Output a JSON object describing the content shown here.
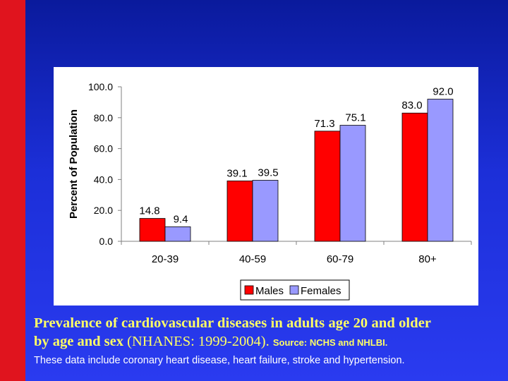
{
  "chart_data": {
    "type": "bar",
    "categories": [
      "20-39",
      "40-59",
      "60-79",
      "80+"
    ],
    "series": [
      {
        "name": "Males",
        "values": [
          14.8,
          39.1,
          71.3,
          83.0
        ],
        "labels": [
          "14.8",
          "39.1",
          "71.3",
          "83.0"
        ],
        "color": "#ff0000"
      },
      {
        "name": "Females",
        "values": [
          9.4,
          39.5,
          75.1,
          92.0
        ],
        "labels": [
          "9.4",
          "39.5",
          "75.1",
          "92.0"
        ],
        "color": "#9999ff"
      }
    ],
    "yticks": [
      "0.0",
      "20.0",
      "40.0",
      "60.0",
      "80.0",
      "100.0"
    ],
    "ylim": [
      0,
      100
    ],
    "ylabel": "Percent of Population",
    "xlabel": "",
    "legend_position": "bottom-center"
  },
  "caption": {
    "title_bold": "Prevalence of cardiovascular diseases in adults age 20 and older",
    "line2_bold": "by age and sex",
    "line2_plain": " (NHANES: 1999-2004). ",
    "source": "Source: NCHS and NHLBI.",
    "note": "These data include coronary heart disease, heart failure, stroke and hypertension."
  },
  "colors": {
    "background_top": "#0a1a9c",
    "side_bar": "#e0141e",
    "caption_text": "#ffff66",
    "note_text": "#ffffff"
  }
}
